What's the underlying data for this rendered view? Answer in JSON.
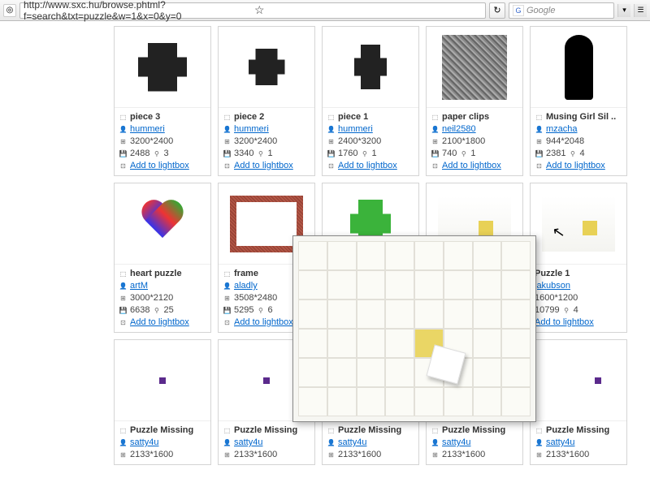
{
  "addressbar": {
    "url": "http://www.sxc.hu/browse.phtml?f=search&txt=puzzle&w=1&x=0&y=0",
    "search_placeholder": "Google"
  },
  "labels": {
    "add_to_lightbox": "Add to lightbox"
  },
  "colors": {
    "link": "#0066cc",
    "border": "#d4d4d4",
    "preview_bg": "#f6f6f2"
  },
  "items": [
    {
      "title": "piece 3",
      "author": "hummeri",
      "dims": "3200*2400",
      "views": "2488",
      "dls": "3"
    },
    {
      "title": "piece 2",
      "author": "hummeri",
      "dims": "3200*2400",
      "views": "3340",
      "dls": "1"
    },
    {
      "title": "piece 1",
      "author": "hummeri",
      "dims": "2400*3200",
      "views": "1760",
      "dls": "1"
    },
    {
      "title": "paper clips",
      "author": "neil2580",
      "dims": "2100*1800",
      "views": "740",
      "dls": "1"
    },
    {
      "title": "Musing Girl Sil ..",
      "author": "mzacha",
      "dims": "944*2048",
      "views": "2381",
      "dls": "4"
    },
    {
      "title": "heart puzzle",
      "author": "artM",
      "dims": "3000*2120",
      "views": "6638",
      "dls": "25"
    },
    {
      "title": "frame",
      "author": "aladly",
      "dims": "3508*2480",
      "views": "5295",
      "dls": "6"
    },
    {
      "title": "",
      "author": "",
      "dims": "",
      "views": "",
      "dls": ""
    },
    {
      "title": "",
      "author": "",
      "dims": "",
      "views": "",
      "dls": ""
    },
    {
      "title": "Puzzle 1",
      "author": "jakubson",
      "dims": "1600*1200",
      "views": "10799",
      "dls": "4"
    },
    {
      "title": "Puzzle Missing",
      "author": "satty4u",
      "dims": "2133*1600",
      "views": "",
      "dls": ""
    },
    {
      "title": "Puzzle Missing",
      "author": "satty4u",
      "dims": "2133*1600",
      "views": "",
      "dls": ""
    },
    {
      "title": "Puzzle Missing",
      "author": "satty4u",
      "dims": "2133*1600",
      "views": "",
      "dls": ""
    },
    {
      "title": "Puzzle Missing",
      "author": "satty4u",
      "dims": "2133*1600",
      "views": "",
      "dls": ""
    },
    {
      "title": "Puzzle Missing",
      "author": "satty4u",
      "dims": "2133*1600",
      "views": "",
      "dls": ""
    }
  ]
}
